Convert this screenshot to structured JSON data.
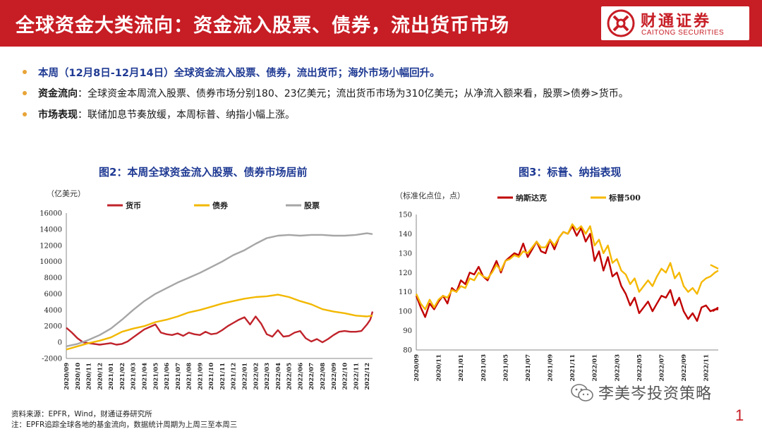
{
  "header": {
    "title": "全球资金大类流向：资金流入股票、债券，流出货币市场",
    "logo_cn": "财通证券",
    "logo_en": "CAITONG SECURITIES"
  },
  "bullets": [
    {
      "label": "",
      "text": "本周（12月8日-12月14日）全球资金流入股票、债券，流出货币；海外市场小幅回升。"
    },
    {
      "label": "资金流向",
      "text": "：全球资金本周流入股票、债券市场分别180、23亿美元；流出货币市场为310亿美元；从净流入额来看，股票>债券>货币。"
    },
    {
      "label": "市场表现",
      "text": "：联储加息节奏放缓，本周标普、纳指小幅上涨。"
    }
  ],
  "chart_data": [
    {
      "type": "line",
      "title": "图2：本周全球资金流入股票、债券市场居前",
      "ylabel": "（亿美元）",
      "ylim": [
        -2000,
        16000
      ],
      "yticks": [
        -2000,
        0,
        2000,
        4000,
        6000,
        8000,
        10000,
        12000,
        14000,
        16000
      ],
      "x_tick_labels": [
        "2020/09",
        "2020/10",
        "2020/11",
        "2020/12",
        "2021/01",
        "2021/02",
        "2021/03",
        "2021/04",
        "2021/05",
        "2021/06",
        "2021/07",
        "2021/08",
        "2021/09",
        "2021/10",
        "2021/11",
        "2021/12",
        "2022/01",
        "2022/02",
        "2022/03",
        "2022/04",
        "2022/05",
        "2022/06",
        "2022/07",
        "2022/08",
        "2022/09",
        "2022/10",
        "2022/11",
        "2022/12"
      ],
      "x_range": [
        0,
        27.5
      ],
      "legend": "top",
      "series": [
        {
          "name": "货币",
          "color": "#c0232b",
          "x": [
            0,
            0.5,
            1,
            1.5,
            2,
            2.5,
            3,
            3.5,
            4,
            4.5,
            5,
            5.5,
            6,
            6.5,
            7,
            7.5,
            8,
            8.5,
            9,
            9.5,
            10,
            10.5,
            11,
            11.5,
            12,
            12.5,
            13,
            13.5,
            14,
            14.5,
            15,
            15.5,
            16,
            16.5,
            17,
            17.5,
            18,
            18.5,
            19,
            19.5,
            20,
            20.5,
            21,
            21.5,
            22,
            22.5,
            23,
            23.5,
            24,
            24.5,
            25,
            25.5,
            26,
            26.5,
            27,
            27.3
          ],
          "y": [
            1800,
            1200,
            500,
            0,
            -100,
            -200,
            -300,
            -200,
            -100,
            -300,
            -200,
            100,
            600,
            1100,
            1600,
            1900,
            2200,
            1200,
            1000,
            900,
            1100,
            800,
            1200,
            1000,
            900,
            1300,
            1000,
            1100,
            1500,
            2000,
            2400,
            2800,
            3100,
            2200,
            3200,
            2300,
            1000,
            700,
            1500,
            700,
            800,
            1200,
            1400,
            500,
            100,
            400,
            0,
            400,
            900,
            1300,
            1400,
            1300,
            1300,
            1400,
            2200,
            2800
          ],
          "x2": [
            27.3,
            27.5
          ],
          "y2": [
            2800,
            3800
          ]
        },
        {
          "name": "债券",
          "color": "#f2b800",
          "x": [
            0,
            1,
            2,
            3,
            4,
            5,
            6,
            7,
            8,
            9,
            10,
            11,
            12,
            13,
            14,
            15,
            16,
            17,
            18,
            19,
            20,
            21,
            22,
            23,
            24,
            25,
            26,
            27,
            27.5
          ],
          "y": [
            -900,
            -500,
            -100,
            200,
            600,
            1300,
            1700,
            2000,
            2500,
            2800,
            3200,
            3700,
            4000,
            4400,
            4800,
            5100,
            5400,
            5600,
            5700,
            5900,
            5600,
            5100,
            4700,
            4100,
            3800,
            3600,
            3300,
            3200,
            3300
          ]
        },
        {
          "name": "股票",
          "color": "#a6a6a6",
          "x": [
            0,
            1,
            2,
            3,
            4,
            5,
            6,
            7,
            8,
            9,
            10,
            11,
            12,
            13,
            14,
            15,
            16,
            17,
            18,
            19,
            20,
            21,
            22,
            23,
            24,
            25,
            26,
            27,
            27.5
          ],
          "y": [
            -500,
            -200,
            300,
            900,
            1700,
            2800,
            4000,
            5100,
            6000,
            6700,
            7400,
            8000,
            8600,
            9300,
            10000,
            10800,
            11400,
            12200,
            12900,
            13200,
            13300,
            13200,
            13300,
            13300,
            13200,
            13200,
            13300,
            13500,
            13400
          ]
        }
      ]
    },
    {
      "type": "line",
      "title": "图3：标普、纳指表现",
      "ylabel": "（标准化点位，点）",
      "ylim": [
        80,
        150
      ],
      "yticks": [
        80,
        90,
        100,
        110,
        120,
        130,
        140,
        150
      ],
      "x_tick_labels": [
        "2020/09",
        "2020/11",
        "2021/01",
        "2021/03",
        "2021/05",
        "2021/07",
        "2021/09",
        "2021/11",
        "2022/01",
        "2022/03",
        "2022/05",
        "2022/07",
        "2022/09",
        "2022/11"
      ],
      "x_range": [
        0,
        13.55
      ],
      "legend": "top",
      "series": [
        {
          "name": "纳斯达克",
          "color": "#c00000",
          "x": [
            0,
            0.2,
            0.4,
            0.6,
            0.8,
            1,
            1.2,
            1.4,
            1.6,
            1.8,
            2,
            2.2,
            2.4,
            2.6,
            2.8,
            3,
            3.2,
            3.4,
            3.6,
            3.8,
            4,
            4.2,
            4.4,
            4.6,
            4.8,
            5,
            5.2,
            5.4,
            5.6,
            5.8,
            6,
            6.2,
            6.4,
            6.6,
            6.8,
            7,
            7.2,
            7.4,
            7.6,
            7.8,
            8,
            8.2,
            8.4,
            8.6,
            8.8,
            9,
            9.2,
            9.4,
            9.6,
            9.8,
            10,
            10.2,
            10.4,
            10.6,
            10.8,
            11,
            11.2,
            11.4,
            11.6,
            11.8,
            12,
            12.2,
            12.4,
            12.6,
            12.8,
            13,
            13.2,
            13.4,
            13.55
          ],
          "y": [
            108,
            102,
            97,
            104,
            101,
            105,
            108,
            104,
            112,
            110,
            116,
            114,
            120,
            119,
            123,
            118,
            116,
            121,
            126,
            120,
            126,
            128,
            130,
            129,
            135,
            128,
            132,
            136,
            131,
            130,
            137,
            132,
            138,
            141,
            140,
            144,
            139,
            143,
            136,
            140,
            126,
            131,
            121,
            128,
            118,
            120,
            113,
            109,
            103,
            107,
            99,
            102,
            105,
            100,
            104,
            108,
            107,
            111,
            103,
            107,
            100,
            96,
            99,
            95,
            102,
            103,
            100,
            101,
            101
          ],
          "x2": [
            13.3,
            13.55
          ],
          "y2": [
            100,
            102
          ]
        },
        {
          "name": "标普500",
          "color": "#f5b800",
          "x": [
            0,
            0.2,
            0.4,
            0.6,
            0.8,
            1,
            1.2,
            1.4,
            1.6,
            1.8,
            2,
            2.2,
            2.4,
            2.6,
            2.8,
            3,
            3.2,
            3.4,
            3.6,
            3.8,
            4,
            4.2,
            4.4,
            4.6,
            4.8,
            5,
            5.2,
            5.4,
            5.6,
            5.8,
            6,
            6.2,
            6.4,
            6.6,
            6.8,
            7,
            7.2,
            7.4,
            7.6,
            7.8,
            8,
            8.2,
            8.4,
            8.6,
            8.8,
            9,
            9.2,
            9.4,
            9.6,
            9.8,
            10,
            10.2,
            10.4,
            10.6,
            10.8,
            11,
            11.2,
            11.4,
            11.6,
            11.8,
            12,
            12.2,
            12.4,
            12.6,
            12.8,
            13,
            13.2,
            13.4,
            13.55
          ],
          "y": [
            109,
            104,
            101,
            106,
            102,
            106,
            108,
            107,
            111,
            110,
            113,
            112,
            117,
            116,
            120,
            118,
            117,
            120,
            124,
            121,
            126,
            127,
            129,
            128,
            131,
            130,
            133,
            136,
            133,
            133,
            137,
            134,
            138,
            141,
            140,
            145,
            142,
            144,
            140,
            144,
            134,
            137,
            130,
            134,
            125,
            127,
            121,
            119,
            114,
            117,
            110,
            113,
            116,
            113,
            118,
            122,
            120,
            125,
            117,
            120,
            113,
            110,
            112,
            109,
            115,
            117,
            118,
            120,
            121
          ],
          "x2": [
            13.2,
            13.55
          ],
          "y2": [
            124,
            122
          ]
        }
      ]
    }
  ],
  "footer": {
    "source": "资料来源：EPFR，Wind，财通证券研究所",
    "note": "注：EPFR追踪全球各地的基金流向，数据统计周期为上周三至本周三"
  },
  "wechat": {
    "name": "李美岑投资策略"
  },
  "page_number": "1"
}
